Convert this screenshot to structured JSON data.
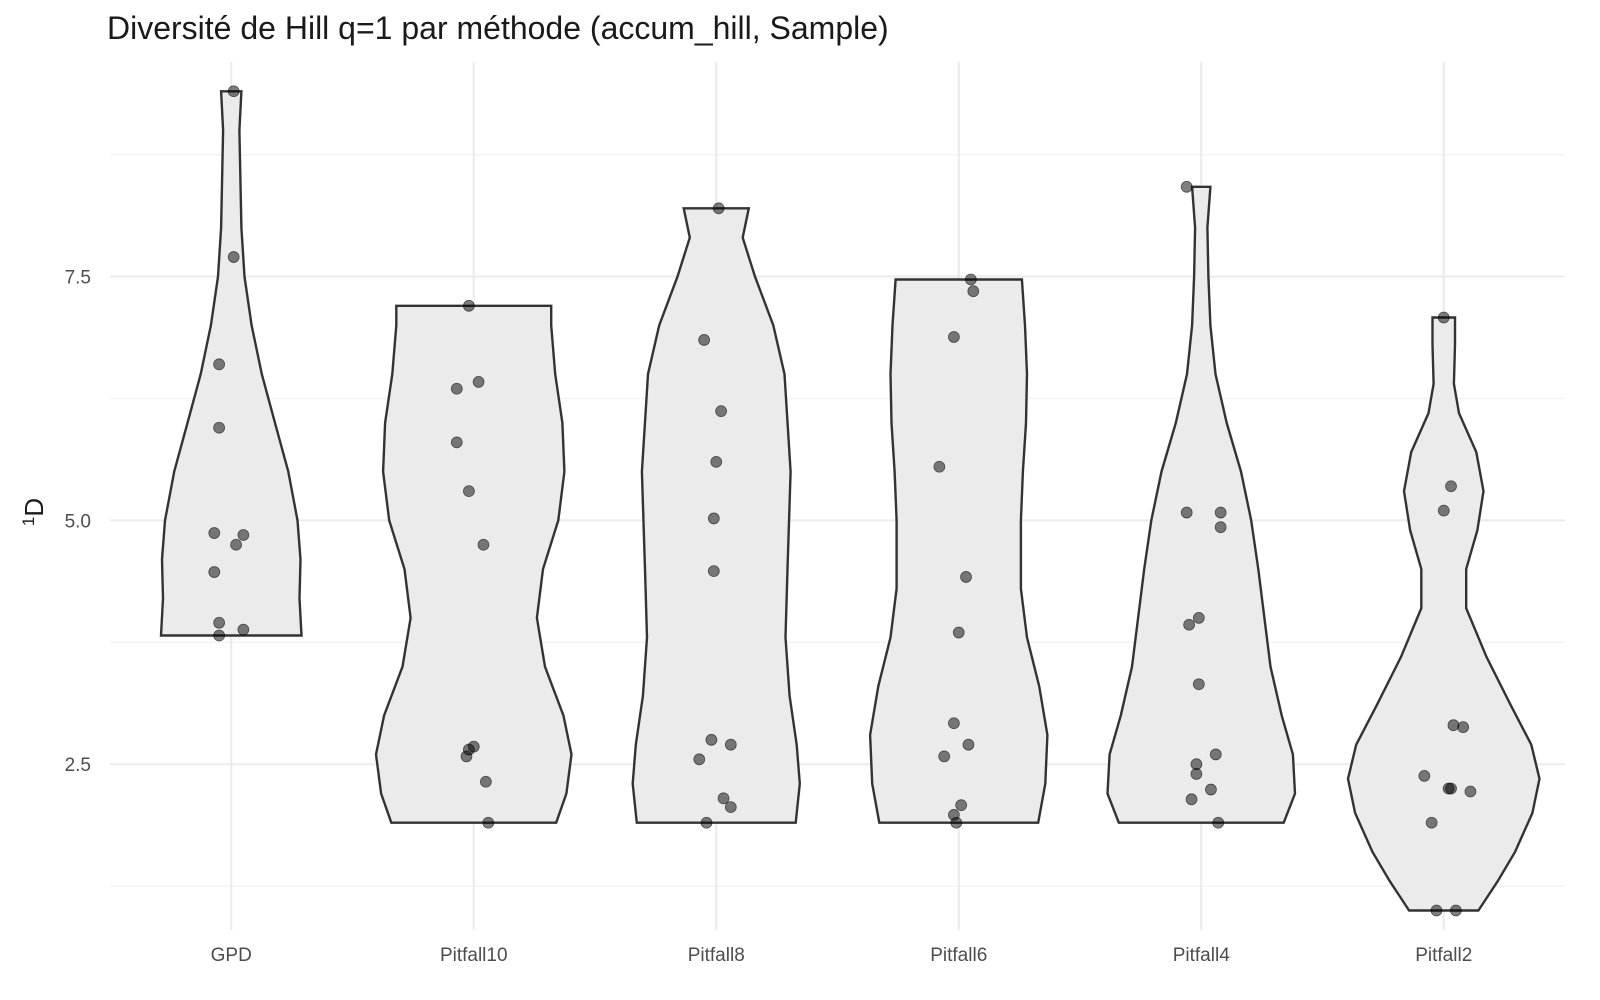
{
  "chart_data": {
    "type": "violin",
    "title": "Diversité de Hill q=1 par méthode (accum_hill, Sample)",
    "ylabel_sup": "1",
    "ylabel_main": "D",
    "xlabel": "",
    "ylim": [
      0.8,
      9.7
    ],
    "yticks": [
      2.5,
      5.0,
      7.5
    ],
    "ytick_labels": [
      "2.5",
      "5.0",
      "7.5"
    ],
    "yminor": [
      1.25,
      3.75,
      6.25,
      8.75
    ],
    "grid": true,
    "categories": [
      "GPD",
      "Pitfall10",
      "Pitfall8",
      "Pitfall6",
      "Pitfall4",
      "Pitfall2"
    ],
    "fill_color": "#ebebeb",
    "outline_color": "#333333",
    "point_color": "#000000",
    "groups": [
      {
        "name": "GPD",
        "points": [
          {
            "x": 0.01,
            "y": 9.4
          },
          {
            "x": 0.01,
            "y": 7.7
          },
          {
            "x": -0.05,
            "y": 6.6
          },
          {
            "x": -0.05,
            "y": 5.95
          },
          {
            "x": -0.07,
            "y": 4.87
          },
          {
            "x": 0.05,
            "y": 4.85
          },
          {
            "x": 0.02,
            "y": 4.75
          },
          {
            "x": -0.07,
            "y": 4.47
          },
          {
            "x": -0.05,
            "y": 3.95
          },
          {
            "x": 0.05,
            "y": 3.88
          },
          {
            "x": -0.05,
            "y": 3.82
          }
        ],
        "density": [
          [
            3.82,
            0.69
          ],
          [
            4.2,
            0.67
          ],
          [
            4.6,
            0.68
          ],
          [
            5.0,
            0.65
          ],
          [
            5.5,
            0.56
          ],
          [
            6.0,
            0.43
          ],
          [
            6.5,
            0.3
          ],
          [
            7.0,
            0.2
          ],
          [
            7.5,
            0.13
          ],
          [
            8.0,
            0.1
          ],
          [
            8.5,
            0.09
          ],
          [
            9.0,
            0.08
          ],
          [
            9.4,
            0.1
          ]
        ]
      },
      {
        "name": "Pitfall10",
        "points": [
          {
            "x": -0.02,
            "y": 7.2
          },
          {
            "x": 0.02,
            "y": 6.42
          },
          {
            "x": -0.07,
            "y": 6.35
          },
          {
            "x": -0.07,
            "y": 5.8
          },
          {
            "x": -0.02,
            "y": 5.3
          },
          {
            "x": 0.04,
            "y": 4.75
          },
          {
            "x": 0.0,
            "y": 2.68
          },
          {
            "x": -0.02,
            "y": 2.65
          },
          {
            "x": -0.03,
            "y": 2.58
          },
          {
            "x": 0.05,
            "y": 2.32
          },
          {
            "x": 0.06,
            "y": 1.9
          }
        ],
        "density": [
          [
            1.9,
            0.81
          ],
          [
            2.2,
            0.91
          ],
          [
            2.6,
            0.96
          ],
          [
            3.0,
            0.88
          ],
          [
            3.5,
            0.7
          ],
          [
            4.0,
            0.62
          ],
          [
            4.5,
            0.68
          ],
          [
            5.0,
            0.83
          ],
          [
            5.5,
            0.89
          ],
          [
            6.0,
            0.87
          ],
          [
            6.5,
            0.8
          ],
          [
            7.0,
            0.76
          ],
          [
            7.2,
            0.76
          ]
        ]
      },
      {
        "name": "Pitfall8",
        "points": [
          {
            "x": 0.01,
            "y": 8.2
          },
          {
            "x": -0.05,
            "y": 6.85
          },
          {
            "x": 0.02,
            "y": 6.12
          },
          {
            "x": 0.0,
            "y": 5.6
          },
          {
            "x": -0.01,
            "y": 5.02
          },
          {
            "x": -0.01,
            "y": 4.48
          },
          {
            "x": -0.02,
            "y": 2.75
          },
          {
            "x": 0.06,
            "y": 2.7
          },
          {
            "x": -0.07,
            "y": 2.55
          },
          {
            "x": 0.03,
            "y": 2.15
          },
          {
            "x": 0.06,
            "y": 2.06
          },
          {
            "x": -0.04,
            "y": 1.9
          }
        ],
        "density": [
          [
            1.9,
            0.78
          ],
          [
            2.3,
            0.82
          ],
          [
            2.7,
            0.79
          ],
          [
            3.2,
            0.72
          ],
          [
            3.8,
            0.68
          ],
          [
            4.5,
            0.7
          ],
          [
            5.5,
            0.73
          ],
          [
            6.5,
            0.67
          ],
          [
            7.0,
            0.56
          ],
          [
            7.5,
            0.38
          ],
          [
            7.9,
            0.26
          ],
          [
            8.2,
            0.32
          ]
        ]
      },
      {
        "name": "Pitfall6",
        "points": [
          {
            "x": 0.05,
            "y": 7.47
          },
          {
            "x": 0.06,
            "y": 7.35
          },
          {
            "x": -0.02,
            "y": 6.88
          },
          {
            "x": -0.08,
            "y": 5.55
          },
          {
            "x": 0.03,
            "y": 4.42
          },
          {
            "x": 0.0,
            "y": 3.85
          },
          {
            "x": -0.02,
            "y": 2.92
          },
          {
            "x": 0.04,
            "y": 2.7
          },
          {
            "x": -0.06,
            "y": 2.58
          },
          {
            "x": 0.01,
            "y": 2.08
          },
          {
            "x": -0.02,
            "y": 1.98
          },
          {
            "x": -0.01,
            "y": 1.9
          }
        ],
        "density": [
          [
            1.9,
            0.78
          ],
          [
            2.3,
            0.85
          ],
          [
            2.8,
            0.87
          ],
          [
            3.3,
            0.79
          ],
          [
            3.8,
            0.67
          ],
          [
            4.3,
            0.61
          ],
          [
            5.0,
            0.61
          ],
          [
            5.5,
            0.63
          ],
          [
            6.0,
            0.66
          ],
          [
            6.5,
            0.67
          ],
          [
            7.0,
            0.65
          ],
          [
            7.47,
            0.62
          ]
        ]
      },
      {
        "name": "Pitfall4",
        "points": [
          {
            "x": -0.06,
            "y": 8.42
          },
          {
            "x": 0.08,
            "y": 5.08
          },
          {
            "x": -0.06,
            "y": 5.08
          },
          {
            "x": 0.08,
            "y": 4.93
          },
          {
            "x": -0.01,
            "y": 4.0
          },
          {
            "x": -0.05,
            "y": 3.93
          },
          {
            "x": -0.01,
            "y": 3.32
          },
          {
            "x": 0.06,
            "y": 2.6
          },
          {
            "x": -0.02,
            "y": 2.5
          },
          {
            "x": -0.02,
            "y": 2.4
          },
          {
            "x": 0.04,
            "y": 2.24
          },
          {
            "x": -0.04,
            "y": 2.14
          },
          {
            "x": 0.07,
            "y": 1.9
          }
        ],
        "density": [
          [
            1.9,
            0.81
          ],
          [
            2.2,
            0.92
          ],
          [
            2.6,
            0.9
          ],
          [
            3.0,
            0.79
          ],
          [
            3.5,
            0.68
          ],
          [
            4.0,
            0.62
          ],
          [
            4.5,
            0.56
          ],
          [
            5.0,
            0.49
          ],
          [
            5.5,
            0.39
          ],
          [
            6.0,
            0.25
          ],
          [
            6.5,
            0.14
          ],
          [
            7.0,
            0.09
          ],
          [
            7.5,
            0.07
          ],
          [
            8.0,
            0.06
          ],
          [
            8.42,
            0.09
          ]
        ]
      },
      {
        "name": "Pitfall2",
        "points": [
          {
            "x": 0.0,
            "y": 7.08
          },
          {
            "x": 0.03,
            "y": 5.35
          },
          {
            "x": 0.0,
            "y": 5.1
          },
          {
            "x": 0.04,
            "y": 2.9
          },
          {
            "x": 0.08,
            "y": 2.88
          },
          {
            "x": -0.08,
            "y": 2.38
          },
          {
            "x": 0.02,
            "y": 2.25
          },
          {
            "x": 0.03,
            "y": 2.25
          },
          {
            "x": 0.11,
            "y": 2.22
          },
          {
            "x": -0.05,
            "y": 1.9
          },
          {
            "x": -0.03,
            "y": 1.0
          },
          {
            "x": 0.05,
            "y": 1.0
          }
        ],
        "density": [
          [
            1.0,
            0.34
          ],
          [
            1.3,
            0.53
          ],
          [
            1.6,
            0.7
          ],
          [
            2.0,
            0.87
          ],
          [
            2.35,
            0.94
          ],
          [
            2.7,
            0.86
          ],
          [
            3.1,
            0.66
          ],
          [
            3.6,
            0.42
          ],
          [
            4.1,
            0.22
          ],
          [
            4.5,
            0.22
          ],
          [
            4.9,
            0.33
          ],
          [
            5.3,
            0.39
          ],
          [
            5.7,
            0.32
          ],
          [
            6.1,
            0.15
          ],
          [
            6.4,
            0.1
          ],
          [
            6.8,
            0.11
          ],
          [
            7.08,
            0.11
          ]
        ]
      }
    ]
  }
}
